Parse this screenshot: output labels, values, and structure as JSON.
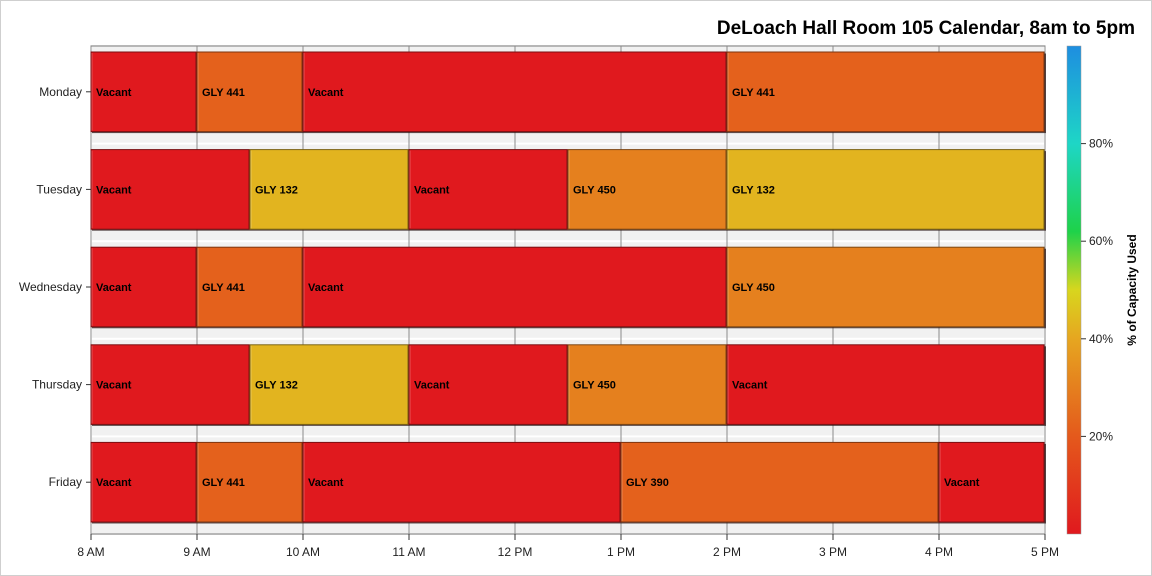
{
  "chart_data": {
    "type": "bar",
    "subtype": "horizontal-timeline",
    "title": "DeLoach Hall Room 105 Calendar, 8am to 5pm",
    "days": [
      "Monday",
      "Tuesday",
      "Wednesday",
      "Thursday",
      "Friday"
    ],
    "x_ticks": [
      {
        "hour": 8,
        "label": "8 AM"
      },
      {
        "hour": 9,
        "label": "9 AM"
      },
      {
        "hour": 10,
        "label": "10 AM"
      },
      {
        "hour": 11,
        "label": "11 AM"
      },
      {
        "hour": 12,
        "label": "12 PM"
      },
      {
        "hour": 13,
        "label": "1 PM"
      },
      {
        "hour": 14,
        "label": "2 PM"
      },
      {
        "hour": 15,
        "label": "3 PM"
      },
      {
        "hour": 16,
        "label": "4 PM"
      },
      {
        "hour": 17,
        "label": "5 PM"
      }
    ],
    "xlim": [
      8,
      17
    ],
    "color_scale": {
      "label": "% of Capacity Used",
      "range": [
        0,
        100
      ],
      "ticks": [
        {
          "value": 20,
          "label": "20%"
        },
        {
          "value": 40,
          "label": "40%"
        },
        {
          "value": 60,
          "label": "60%"
        },
        {
          "value": 80,
          "label": "80%"
        }
      ],
      "stops": [
        {
          "value": 0,
          "color": "#e0191e"
        },
        {
          "value": 20,
          "color": "#e4591c"
        },
        {
          "value": 40,
          "color": "#e6a620"
        },
        {
          "value": 50,
          "color": "#d8d61e"
        },
        {
          "value": 62,
          "color": "#1ed24a"
        },
        {
          "value": 80,
          "color": "#1ed6c6"
        },
        {
          "value": 100,
          "color": "#1e8ee0"
        }
      ]
    },
    "series": [
      {
        "day": "Monday",
        "segments": [
          {
            "label": "Vacant",
            "start": 8,
            "end": 9,
            "capacity": 0
          },
          {
            "label": "GLY 441",
            "start": 9,
            "end": 10,
            "capacity": 22
          },
          {
            "label": "Vacant",
            "start": 10,
            "end": 14,
            "capacity": 0
          },
          {
            "label": "GLY 441",
            "start": 14,
            "end": 17,
            "capacity": 22
          }
        ]
      },
      {
        "day": "Tuesday",
        "segments": [
          {
            "label": "Vacant",
            "start": 8,
            "end": 9.5,
            "capacity": 0
          },
          {
            "label": "GLY 132",
            "start": 9.5,
            "end": 11,
            "capacity": 43
          },
          {
            "label": "Vacant",
            "start": 11,
            "end": 12.5,
            "capacity": 0
          },
          {
            "label": "GLY 450",
            "start": 12.5,
            "end": 14,
            "capacity": 30
          },
          {
            "label": "GLY 132",
            "start": 14,
            "end": 17,
            "capacity": 43
          }
        ]
      },
      {
        "day": "Wednesday",
        "segments": [
          {
            "label": "Vacant",
            "start": 8,
            "end": 9,
            "capacity": 0
          },
          {
            "label": "GLY 441",
            "start": 9,
            "end": 10,
            "capacity": 22
          },
          {
            "label": "Vacant",
            "start": 10,
            "end": 14,
            "capacity": 0
          },
          {
            "label": "GLY 450",
            "start": 14,
            "end": 17,
            "capacity": 30
          }
        ]
      },
      {
        "day": "Thursday",
        "segments": [
          {
            "label": "Vacant",
            "start": 8,
            "end": 9.5,
            "capacity": 0
          },
          {
            "label": "GLY 132",
            "start": 9.5,
            "end": 11,
            "capacity": 43
          },
          {
            "label": "Vacant",
            "start": 11,
            "end": 12.5,
            "capacity": 0
          },
          {
            "label": "GLY 450",
            "start": 12.5,
            "end": 14,
            "capacity": 30
          },
          {
            "label": "Vacant",
            "start": 14,
            "end": 17,
            "capacity": 0
          }
        ]
      },
      {
        "day": "Friday",
        "segments": [
          {
            "label": "Vacant",
            "start": 8,
            "end": 9,
            "capacity": 0
          },
          {
            "label": "GLY 441",
            "start": 9,
            "end": 10,
            "capacity": 22
          },
          {
            "label": "Vacant",
            "start": 10,
            "end": 13,
            "capacity": 0
          },
          {
            "label": "GLY 390",
            "start": 13,
            "end": 16,
            "capacity": 22
          },
          {
            "label": "Vacant",
            "start": 16,
            "end": 17,
            "capacity": 0
          }
        ]
      }
    ]
  }
}
